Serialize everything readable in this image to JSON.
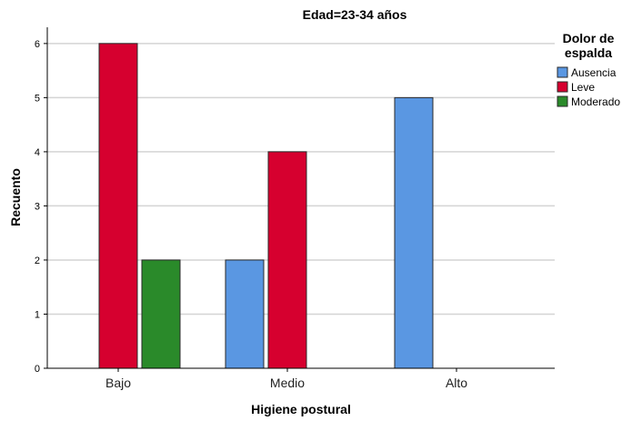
{
  "chart_data": {
    "type": "bar",
    "title": "Edad=23-34 años",
    "xlabel": "Higiene postural",
    "ylabel": "Recuento",
    "categories": [
      "Bajo",
      "Medio",
      "Alto"
    ],
    "series": [
      {
        "name": "Ausencia",
        "color": "#5a97e2",
        "values": [
          0,
          2,
          5
        ]
      },
      {
        "name": "Leve",
        "color": "#d6002f",
        "values": [
          6,
          4,
          0
        ]
      },
      {
        "name": "Moderado",
        "color": "#2a8a2a",
        "values": [
          2,
          0,
          0
        ]
      }
    ],
    "yticks": [
      "0",
      "1",
      "2",
      "3",
      "4",
      "5",
      "6"
    ],
    "ylim": [
      0,
      6.3
    ],
    "grid": true,
    "legend": {
      "title_lines": [
        "Dolor de",
        "espalda"
      ],
      "placement": "right"
    }
  }
}
